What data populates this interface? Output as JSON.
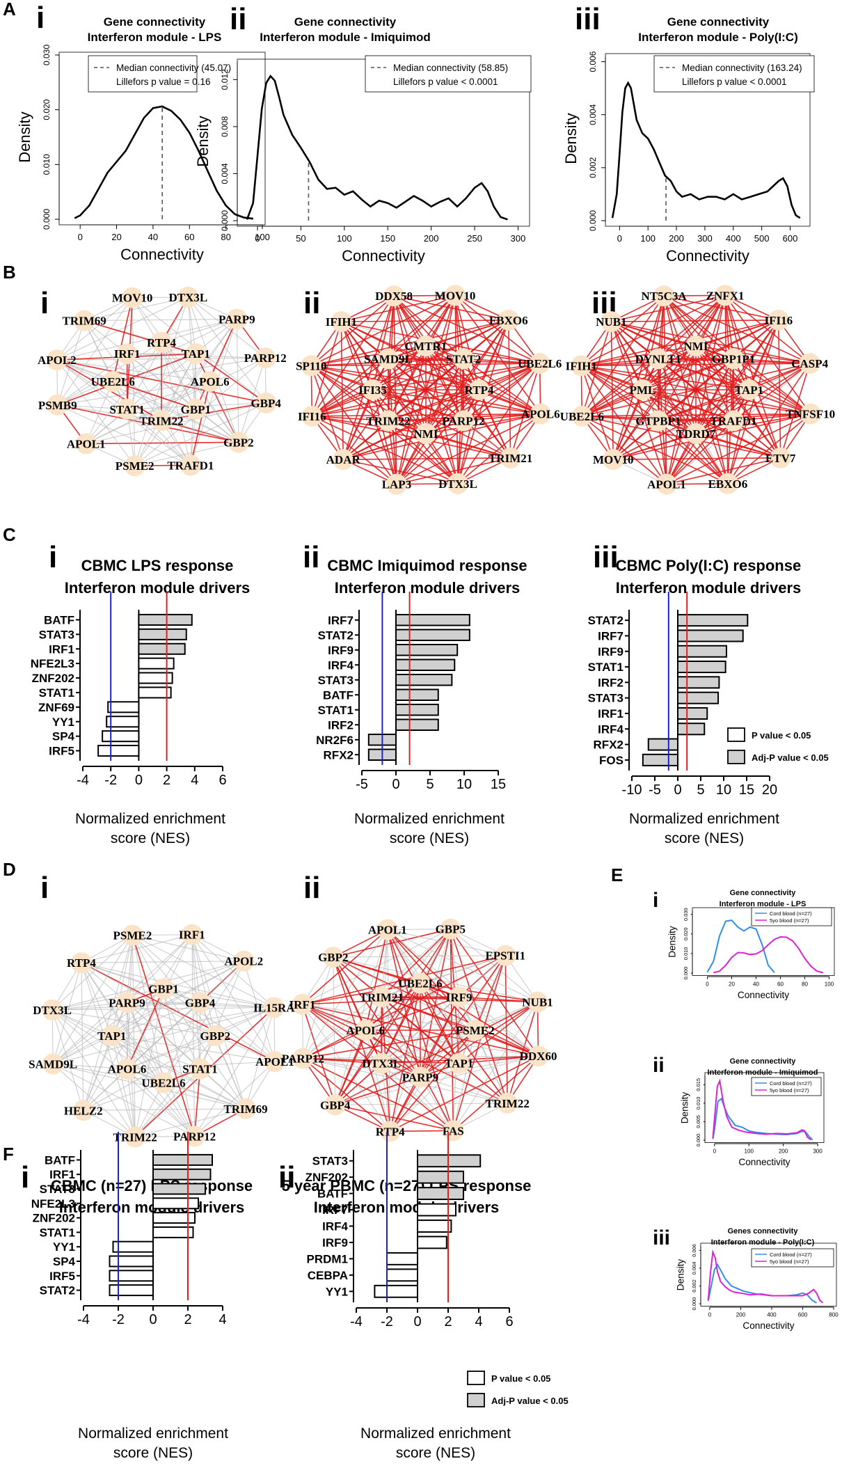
{
  "panel_labels": {
    "A": "A",
    "B": "B",
    "C": "C",
    "D": "D",
    "E": "E",
    "F": "F"
  },
  "colors": {
    "line": "#000000",
    "cord": "#2f8fe8",
    "five": "#dd1fd6",
    "pos_edge": "#e11a1a",
    "neg_edge": "#b9b9b9",
    "node": "#fbe3c8",
    "blue_line": "#1a22cc",
    "red_line": "#e01e1e",
    "bar_gray": "#d0d0d0"
  },
  "legend_bars": {
    "p": "P value < 0.05",
    "adj": "Adj-P value < 0.05"
  },
  "chart_data": [
    {
      "id": "A-i",
      "type": "line",
      "roman": "i",
      "title": [
        "Gene connectivity",
        "Interferon module - LPS"
      ],
      "xlabel": "Connectivity",
      "ylabel": "Density",
      "xlim": [
        -10,
        100
      ],
      "ylim": [
        0,
        0.03
      ],
      "xticks": [
        0,
        20,
        40,
        60,
        80,
        100
      ],
      "yticks": [
        0,
        0.01,
        0.02,
        0.03
      ],
      "ytick_labels": [
        "0.000",
        "0.010",
        "0.020",
        "0.030"
      ],
      "x": [
        -3,
        0,
        5,
        10,
        15,
        20,
        25,
        30,
        35,
        40,
        45,
        50,
        55,
        60,
        65,
        70,
        75,
        80,
        85,
        90,
        95
      ],
      "y": [
        0.0002,
        0.0007,
        0.0025,
        0.0055,
        0.0085,
        0.0105,
        0.0125,
        0.0155,
        0.0185,
        0.0203,
        0.0206,
        0.0198,
        0.0182,
        0.0158,
        0.0125,
        0.0088,
        0.0052,
        0.0025,
        0.0009,
        0.0003,
        0.0001
      ],
      "median": 45.07,
      "median_y": 0.0206,
      "legend": [
        "Median connectivity (45.07)",
        "Lillefors p value = 0.16"
      ]
    },
    {
      "id": "A-ii",
      "type": "line",
      "roman": "ii",
      "title": [
        "Gene connectivity",
        "Interferon module - Imiquimod"
      ],
      "xlabel": "Connectivity",
      "ylabel": "Density",
      "xlim": [
        -20,
        310
      ],
      "ylim": [
        0,
        0.0135
      ],
      "xticks": [
        0,
        50,
        100,
        150,
        200,
        250,
        300
      ],
      "yticks": [
        0,
        0.004,
        0.008,
        0.012
      ],
      "ytick_labels": [
        "0.000",
        "0.004",
        "0.008",
        "0.012"
      ],
      "x": [
        -12,
        -5,
        0,
        5,
        10,
        15,
        20,
        25,
        30,
        40,
        50,
        60,
        70,
        80,
        90,
        100,
        110,
        120,
        130,
        140,
        150,
        160,
        170,
        180,
        190,
        200,
        210,
        220,
        230,
        240,
        250,
        258,
        265,
        272,
        280,
        288
      ],
      "y": [
        0.0001,
        0.0015,
        0.0055,
        0.0095,
        0.0117,
        0.0123,
        0.0119,
        0.0105,
        0.009,
        0.0073,
        0.0062,
        0.005,
        0.0035,
        0.0027,
        0.0028,
        0.0022,
        0.0025,
        0.0018,
        0.0012,
        0.0017,
        0.0015,
        0.0011,
        0.0016,
        0.0021,
        0.0017,
        0.0012,
        0.0016,
        0.0019,
        0.0012,
        0.0019,
        0.0028,
        0.0032,
        0.0025,
        0.0012,
        0.0003,
        0.0001
      ],
      "median": 58.85,
      "median_y": 0.0052,
      "legend": [
        "Median connectivity (58.85)",
        "Lillefors p value < 0.0001"
      ]
    },
    {
      "id": "A-iii",
      "type": "line",
      "roman": "iii",
      "title": [
        "Gene connectivity",
        "Interferon module - Poly(I:C)"
      ],
      "xlabel": "Connectivity",
      "ylabel": "Density",
      "xlim": [
        -40,
        660
      ],
      "ylim": [
        0,
        0.0062
      ],
      "xticks": [
        0,
        100,
        200,
        300,
        400,
        500,
        600
      ],
      "yticks": [
        0,
        0.002,
        0.004,
        0.006
      ],
      "ytick_labels": [
        "0.000",
        "0.002",
        "0.004",
        "0.006"
      ],
      "x": [
        -25,
        -10,
        0,
        10,
        20,
        30,
        40,
        50,
        60,
        80,
        100,
        120,
        140,
        160,
        180,
        200,
        220,
        250,
        280,
        310,
        340,
        370,
        400,
        430,
        460,
        490,
        520,
        540,
        560,
        575,
        590,
        605,
        620,
        635
      ],
      "y": [
        0.0001,
        0.001,
        0.0025,
        0.0041,
        0.005,
        0.0052,
        0.005,
        0.0044,
        0.0038,
        0.0033,
        0.0031,
        0.0027,
        0.0022,
        0.0017,
        0.0015,
        0.0011,
        0.0009,
        0.001,
        0.0008,
        0.0009,
        0.0009,
        0.0008,
        0.001,
        0.0008,
        0.0009,
        0.001,
        0.0011,
        0.0013,
        0.0015,
        0.0016,
        0.0013,
        0.0006,
        0.0002,
        0.0001
      ],
      "median": 163.24,
      "median_y": 0.0017,
      "legend": [
        "Median connectivity (163.24)",
        "Lillefors p value < 0.0001"
      ]
    },
    {
      "id": "B-i",
      "type": "network",
      "roman": "i",
      "nodes": [
        "DTX3L",
        "PARP9",
        "PARP12",
        "GBP4",
        "GBP2",
        "TRAFD1",
        "PSME2",
        "APOL1",
        "PSMB9",
        "APOL2",
        "TRIM69",
        "MOV10",
        "RTP4",
        "TAP1",
        "APOL6",
        "GBP1",
        "TRIM22",
        "STAT1",
        "UBE2L6",
        "IRF1"
      ]
    },
    {
      "id": "B-ii",
      "type": "network",
      "roman": "ii",
      "nodes": [
        "MOV10",
        "FBXO6",
        "UBE2L6",
        "APOL6",
        "TRIM21",
        "DTX3L",
        "LAP3",
        "ADAR",
        "IFI16",
        "SP110",
        "IFIH1",
        "DDX58",
        "CMTR1",
        "STAT2",
        "RTP4",
        "PARP12",
        "NMI",
        "TRIM22",
        "IFI35",
        "SAMD9L"
      ]
    },
    {
      "id": "B-iii",
      "type": "network",
      "roman": "iii",
      "nodes": [
        "ZNFX1",
        "IFI16",
        "CASP4",
        "TNFSF10",
        "ETV7",
        "EBXO6",
        "APOL1",
        "MOV10",
        "UBE2L6",
        "IFIH1",
        "NUB1",
        "NT5C3A",
        "NMI",
        "GBP1P1",
        "TAP1",
        "TRAFD1",
        "TDRD7",
        "GTPBP1",
        "PML",
        "DYNLT1"
      ]
    },
    {
      "id": "C-i",
      "type": "bar",
      "roman": "i",
      "title": [
        "CBMC LPS response",
        "Interferon module drivers"
      ],
      "categories": [
        "BATF",
        "STAT3",
        "IRF1",
        "NFE2L3",
        "ZNF202",
        "STAT1",
        "ZNF69",
        "YY1",
        "SP4",
        "IRF5"
      ],
      "values": [
        3.8,
        3.4,
        3.3,
        2.5,
        2.4,
        2.3,
        -2.2,
        -2.3,
        -2.6,
        -2.9
      ],
      "adj": [
        true,
        true,
        true,
        false,
        false,
        false,
        false,
        false,
        false,
        false
      ],
      "xlim": [
        -4,
        6
      ],
      "xticks": [
        -4,
        -2,
        0,
        2,
        4,
        6
      ],
      "thresholds": [
        -2,
        2
      ],
      "xlabel": [
        "Normalized enrichment",
        "score (NES)"
      ]
    },
    {
      "id": "C-ii",
      "type": "bar",
      "roman": "ii",
      "title": [
        "CBMC Imiquimod response",
        "Interferon module drivers"
      ],
      "categories": [
        "IRF7",
        "STAT2",
        "IRF9",
        "IRF4",
        "STAT3",
        "BATF",
        "STAT1",
        "IRF2",
        "NR2F6",
        "RFX2"
      ],
      "values": [
        10.8,
        10.8,
        9.0,
        8.6,
        8.2,
        6.2,
        6.2,
        6.2,
        -4.0,
        -4.0
      ],
      "adj": [
        true,
        true,
        true,
        true,
        true,
        true,
        true,
        true,
        true,
        true
      ],
      "xlim": [
        -5,
        15
      ],
      "xticks": [
        -5,
        0,
        5,
        10,
        15
      ],
      "thresholds": [
        -2,
        2
      ],
      "xlabel": [
        "Normalized enrichment",
        "score (NES)"
      ]
    },
    {
      "id": "C-iii",
      "type": "bar",
      "roman": "iii",
      "title": [
        "CBMC Poly(I:C) response",
        "Interferon module drivers"
      ],
      "categories": [
        "STAT2",
        "IRF7",
        "IRF9",
        "STAT1",
        "IRF2",
        "STAT3",
        "IRF1",
        "IRF4",
        "RFX2",
        "FOS"
      ],
      "values": [
        15.2,
        14.2,
        10.6,
        10.4,
        9.0,
        8.8,
        6.4,
        5.8,
        -6.4,
        -7.6
      ],
      "adj": [
        true,
        true,
        true,
        true,
        true,
        true,
        true,
        true,
        true,
        true
      ],
      "xlim": [
        -10,
        20
      ],
      "xticks": [
        -10,
        -5,
        0,
        5,
        10,
        15,
        20
      ],
      "thresholds": [
        -2,
        2
      ],
      "xlabel": [
        "Normalized enrichment",
        "score (NES)"
      ]
    },
    {
      "id": "D-i",
      "type": "network",
      "roman": "i",
      "nodes": [
        "IRF1",
        "APOL2",
        "IL15RA",
        "APOL1",
        "TRIM69",
        "PARP12",
        "TRIM22",
        "HELZ2",
        "SAMD9L",
        "DTX3L",
        "RTP4",
        "PSME2",
        "GBP1",
        "GBP4",
        "GBP2",
        "STAT1",
        "UBE2L6",
        "APOL6",
        "TAP1",
        "PARP9"
      ]
    },
    {
      "id": "D-ii",
      "type": "network",
      "roman": "ii",
      "nodes": [
        "GBP5",
        "EPSTI1",
        "NUB1",
        "DDX60",
        "TRIM22",
        "FAS",
        "RTP4",
        "GBP4",
        "PARP12",
        "IRF1",
        "GBP2",
        "APOL1",
        "UBE2L6",
        "IRF9",
        "PSME2",
        "TAP1",
        "PARP9",
        "DTX3L",
        "APOL6",
        "TRIM21"
      ]
    },
    {
      "id": "E-i",
      "type": "line",
      "roman": "i",
      "title": [
        "Gene connectivity",
        "Interferon module - LPS"
      ],
      "xlabel": "Connectivity",
      "ylabel": "Density",
      "xlim": [
        -10,
        102
      ],
      "ylim": [
        0,
        0.032
      ],
      "xticks": [
        0,
        20,
        40,
        60,
        80,
        100
      ],
      "yticks": [
        0,
        0.01,
        0.02,
        0.03
      ],
      "ytick_labels": [
        "0.000",
        "0.010",
        "0.020",
        "0.030"
      ],
      "legend": [
        "Cord blood (n=27)",
        "5yo blood (n=27)"
      ],
      "series": [
        {
          "name": "Cord blood (n=27)",
          "x": [
            0,
            5,
            10,
            15,
            20,
            25,
            30,
            35,
            40,
            45,
            50,
            55
          ],
          "y": [
            0.0005,
            0.006,
            0.019,
            0.0265,
            0.027,
            0.0235,
            0.0215,
            0.0235,
            0.0225,
            0.0145,
            0.004,
            0.0003
          ]
        },
        {
          "name": "5yo blood (n=27)",
          "x": [
            5,
            10,
            15,
            20,
            25,
            30,
            35,
            40,
            45,
            50,
            55,
            60,
            65,
            70,
            75,
            80,
            85,
            90,
            95
          ],
          "y": [
            0.0002,
            0.001,
            0.004,
            0.008,
            0.0105,
            0.0103,
            0.0095,
            0.0098,
            0.0115,
            0.0145,
            0.0172,
            0.0185,
            0.0183,
            0.0165,
            0.0125,
            0.0075,
            0.0035,
            0.001,
            0.0002
          ]
        }
      ]
    },
    {
      "id": "E-ii",
      "type": "line",
      "roman": "ii",
      "title": [
        "Gene connectivity",
        "Interferon module - Imiquimod"
      ],
      "xlabel": "Connectivity",
      "ylabel": "Density",
      "xlim": [
        -20,
        310
      ],
      "ylim": [
        0,
        0.0175
      ],
      "xticks": [
        0,
        100,
        200,
        300
      ],
      "yticks": [
        0,
        0.005,
        0.01,
        0.015
      ],
      "ytick_labels": [
        "0.000",
        "0.005",
        "0.010",
        "0.015"
      ],
      "legend": [
        "Cord blood (n=27)",
        "5yo blood (n=27)"
      ],
      "series": [
        {
          "name": "Cord blood (n=27)",
          "x": [
            -5,
            0,
            10,
            20,
            30,
            40,
            60,
            80,
            100,
            120,
            150,
            180,
            210,
            240,
            255,
            265,
            275,
            285
          ],
          "y": [
            0.0003,
            0.003,
            0.0105,
            0.0112,
            0.0085,
            0.0065,
            0.004,
            0.0035,
            0.0025,
            0.0021,
            0.0018,
            0.0016,
            0.0015,
            0.0018,
            0.0024,
            0.0022,
            0.001,
            0.0001
          ]
        },
        {
          "name": "5yo blood (n=27)",
          "x": [
            -5,
            0,
            8,
            15,
            25,
            35,
            50,
            70,
            90,
            120,
            150,
            180,
            210,
            240,
            255,
            262,
            270,
            280
          ],
          "y": [
            0.0005,
            0.006,
            0.0145,
            0.016,
            0.0105,
            0.0065,
            0.0035,
            0.0027,
            0.0022,
            0.0018,
            0.0016,
            0.0018,
            0.0017,
            0.002,
            0.0028,
            0.0025,
            0.0008,
            0.0001
          ]
        }
      ]
    },
    {
      "id": "E-iii",
      "type": "line",
      "roman": "iii",
      "title": [
        "Genes connectivity",
        "Interferon module - Poly(I:C)"
      ],
      "xlabel": "Connectivity",
      "ylabel": "Density",
      "xlim": [
        -40,
        800
      ],
      "ylim": [
        0,
        0.0065
      ],
      "xticks": [
        0,
        200,
        400,
        600,
        800
      ],
      "yticks": [
        0,
        0.002,
        0.004,
        0.006
      ],
      "ytick_labels": [
        "0.000",
        "0.002",
        "0.004",
        "0.006"
      ],
      "legend": [
        "Cord blood (n=27)",
        "5yo blood (n=27)"
      ],
      "series": [
        {
          "name": "Cord blood (n=27)",
          "x": [
            -10,
            10,
            30,
            50,
            70,
            100,
            140,
            180,
            220,
            300,
            400,
            500,
            560,
            600,
            630,
            660,
            690
          ],
          "y": [
            0.0003,
            0.002,
            0.0038,
            0.0044,
            0.0038,
            0.0028,
            0.002,
            0.0017,
            0.0014,
            0.0011,
            0.0009,
            0.0009,
            0.001,
            0.0012,
            0.001,
            0.0004,
            0.0001
          ]
        },
        {
          "name": "5yo blood (n=27)",
          "x": [
            -10,
            5,
            20,
            35,
            50,
            70,
            100,
            130,
            160,
            200,
            260,
            330,
            400,
            500,
            600,
            640,
            670,
            690,
            710,
            730
          ],
          "y": [
            0.0004,
            0.0035,
            0.0058,
            0.0052,
            0.0036,
            0.0025,
            0.0019,
            0.0015,
            0.0013,
            0.0012,
            0.001,
            0.0011,
            0.0009,
            0.0009,
            0.0009,
            0.0012,
            0.0016,
            0.0012,
            0.0004,
            0.0001
          ]
        }
      ]
    },
    {
      "id": "F-i",
      "type": "bar",
      "roman": "i",
      "title": [
        "CBMC (n=27) LPS response",
        "Interferon module drivers"
      ],
      "categories": [
        "BATF",
        "IRF1",
        "STAT3",
        "NFE2L3",
        "ZNF202",
        "STAT1",
        "YY1",
        "SP4",
        "IRF5",
        "STAT2"
      ],
      "values": [
        3.4,
        3.3,
        3.0,
        2.6,
        2.4,
        2.3,
        -2.3,
        -2.5,
        -2.5,
        -2.5
      ],
      "adj": [
        true,
        true,
        true,
        false,
        false,
        false,
        false,
        false,
        false,
        false
      ],
      "xlim": [
        -4,
        4
      ],
      "xticks": [
        -4,
        -2,
        0,
        2,
        4
      ],
      "thresholds": [
        -2,
        2
      ],
      "xlabel": [
        "Normalized enrichment",
        "score (NES)"
      ]
    },
    {
      "id": "F-ii",
      "type": "bar",
      "roman": "ii",
      "title": [
        "5 year PBMC (n=27) LPS response",
        "Interferon module drivers"
      ],
      "categories": [
        "STAT3",
        "ZNF202",
        "BATF",
        "IRF7",
        "IRF4",
        "IRF9",
        "PRDM1",
        "CEBPA",
        "YY1"
      ],
      "values": [
        4.1,
        3.0,
        3.0,
        2.5,
        2.2,
        1.9,
        -2.0,
        -2.0,
        -2.8
      ],
      "adj": [
        true,
        true,
        true,
        false,
        false,
        false,
        false,
        false,
        false
      ],
      "xlim": [
        -4,
        6
      ],
      "xticks": [
        -4,
        -2,
        0,
        2,
        4,
        6
      ],
      "thresholds": [
        -2,
        2
      ],
      "xlabel": [
        "Normalized enrichment",
        "score (NES)"
      ]
    }
  ]
}
